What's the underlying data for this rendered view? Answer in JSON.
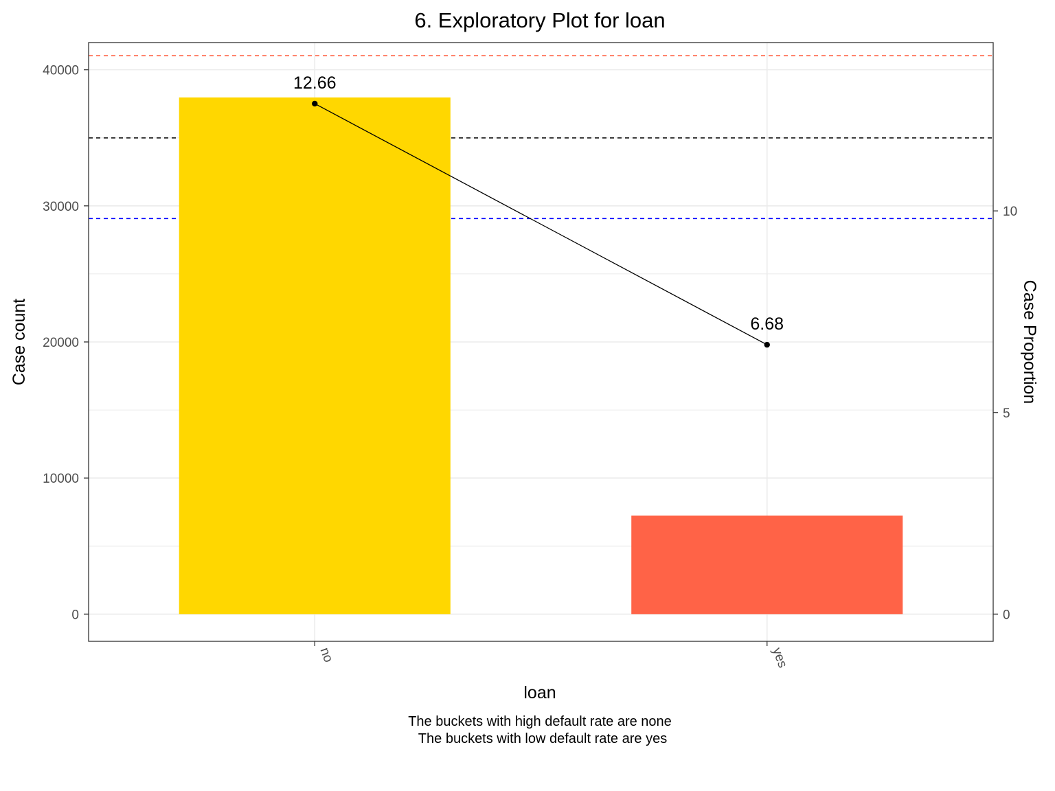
{
  "chart_data": {
    "type": "bar",
    "title": "6. Exploratory Plot for loan",
    "xlabel": "loan",
    "ylabel": "Case count",
    "y2label": "Case Proportion",
    "categories": [
      "no",
      "yes"
    ],
    "values": [
      37967,
      7244
    ],
    "bar_colors": [
      "#FFD700",
      "#FF6347"
    ],
    "line": {
      "values": [
        12.66,
        6.68
      ],
      "labels": [
        "12.66",
        "6.68"
      ],
      "color": "#000000"
    },
    "ylim": [
      -2000,
      42000
    ],
    "yticks": [
      0,
      10000,
      20000,
      30000,
      40000
    ],
    "ytick_labels": [
      "0",
      "10000",
      "20000",
      "30000",
      "40000"
    ],
    "y2ticks": [
      0,
      5,
      10
    ],
    "y2tick_labels": [
      "0",
      "5",
      "10"
    ],
    "y2_scale": 2963,
    "reference_lines": [
      {
        "y2": 13.85,
        "color": "#FF6347"
      },
      {
        "y2": 11.81,
        "color": "#000000"
      },
      {
        "y2": 9.81,
        "color": "#0000FF"
      }
    ],
    "caption_lines": [
      "The buckets with high default rate are none",
      "The buckets with low default rate are yes"
    ],
    "grid": true,
    "legend": "none"
  }
}
